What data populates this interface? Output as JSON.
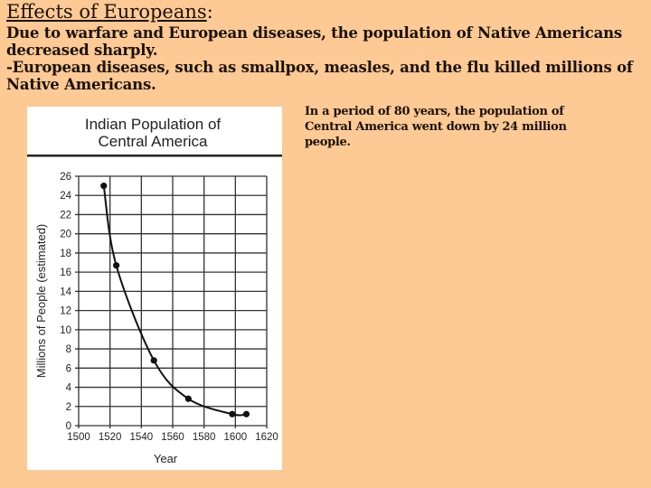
{
  "slide": {
    "heading": "Effects of Europeans",
    "heading_suffix": ":",
    "paragraph1": "Due to warfare and European diseases, the population of Native Americans decreased sharply.",
    "paragraph2": "-European diseases, such as smallpox, measles, and the flu killed millions of Native Americans.",
    "note": "In a period of 80 years, the population of Central America went down by 24 million people."
  },
  "colors": {
    "background": "#fdc994",
    "chart_background": "#ffffff",
    "ink": "#1a1208"
  },
  "chart_data": {
    "type": "line",
    "title_lines": [
      "Indian Population of",
      "Central America"
    ],
    "xlabel": "Year",
    "ylabel": "Millions of People (estimated)",
    "xlim": [
      1500,
      1620
    ],
    "ylim": [
      0,
      26
    ],
    "xticks": [
      1500,
      1520,
      1540,
      1560,
      1580,
      1600,
      1620
    ],
    "yticks": [
      0,
      2,
      4,
      6,
      8,
      10,
      12,
      14,
      16,
      18,
      20,
      22,
      24,
      26
    ],
    "grid": true,
    "x": [
      1516,
      1524,
      1548,
      1570,
      1598,
      1607
    ],
    "y": [
      25.0,
      16.7,
      6.8,
      2.8,
      1.2,
      1.2
    ]
  }
}
